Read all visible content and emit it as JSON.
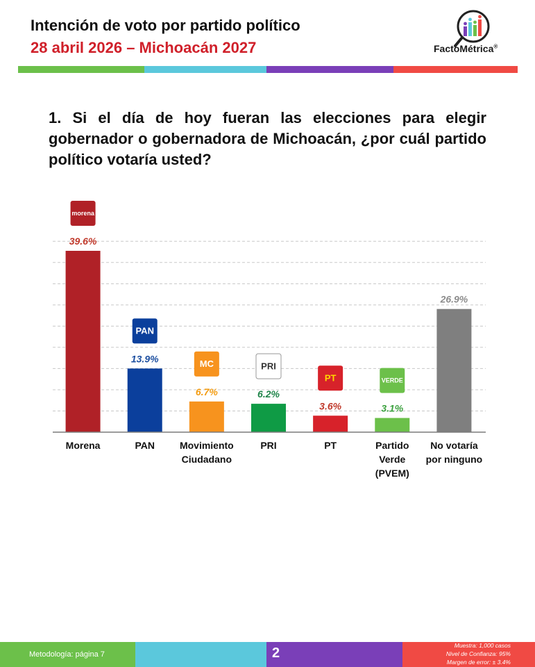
{
  "header": {
    "title": "Intención de voto por partido político",
    "subtitle": "28 abril 2026 – Michoacán 2027",
    "brand": "FactoMétrica",
    "brand_mark": "®"
  },
  "stripe_colors": [
    "#6cc04a",
    "#5bc8dc",
    "#7a3fb8",
    "#f04a44"
  ],
  "question": "1. Si el día de hoy fueran las elecciones para elegir gobernador o gobernadora de Michoacán, ¿por cuál partido político votaría usted?",
  "chart_data": {
    "type": "bar",
    "title": "",
    "xlabel": "",
    "ylabel": "",
    "ylim": [
      0,
      44
    ],
    "grid": true,
    "categories": [
      [
        "Morena"
      ],
      [
        "PAN"
      ],
      [
        "Movimiento",
        "Ciudadano"
      ],
      [
        "PRI"
      ],
      [
        "PT"
      ],
      [
        "Partido",
        "Verde",
        "(PVEM)"
      ],
      [
        "No votaría",
        "por ninguno"
      ]
    ],
    "values": [
      39.6,
      13.9,
      6.7,
      6.2,
      3.6,
      3.1,
      26.9
    ],
    "value_labels": [
      "39.6%",
      "13.9%",
      "6.7%",
      "6.2%",
      "3.6%",
      "3.1%",
      "26.9%"
    ],
    "bar_colors": [
      "#b02127",
      "#0b3f9c",
      "#f7931e",
      "#0f9b45",
      "#d7222a",
      "#6cc04a",
      "#7f7f7f"
    ],
    "label_colors": [
      "#c0392b",
      "#1d4fa0",
      "#f39c12",
      "#1e8449",
      "#c0392b",
      "#3ea241",
      "#8c8c8c"
    ],
    "logos": [
      {
        "text": "morena",
        "bg": "#b02127",
        "fg": "#ffffff"
      },
      {
        "text": "PAN",
        "bg": "#0b3f9c",
        "fg": "#ffffff"
      },
      {
        "text": "MC",
        "bg": "#f7931e",
        "fg": "#ffffff"
      },
      {
        "text": "PRI",
        "bg": "#ffffff",
        "fg": "#333333"
      },
      {
        "text": "PT",
        "bg": "#d7222a",
        "fg": "#ffd700"
      },
      {
        "text": "VERDE",
        "bg": "#6cc04a",
        "fg": "#ffffff"
      },
      null
    ]
  },
  "footer": {
    "methodology": "Metodología: página 7",
    "page": "2",
    "sample": "Muestra:  1,000 casos",
    "confidence": "Nivel de Confianza: 95%",
    "margin": "Margen de error: ± 3.4%"
  }
}
